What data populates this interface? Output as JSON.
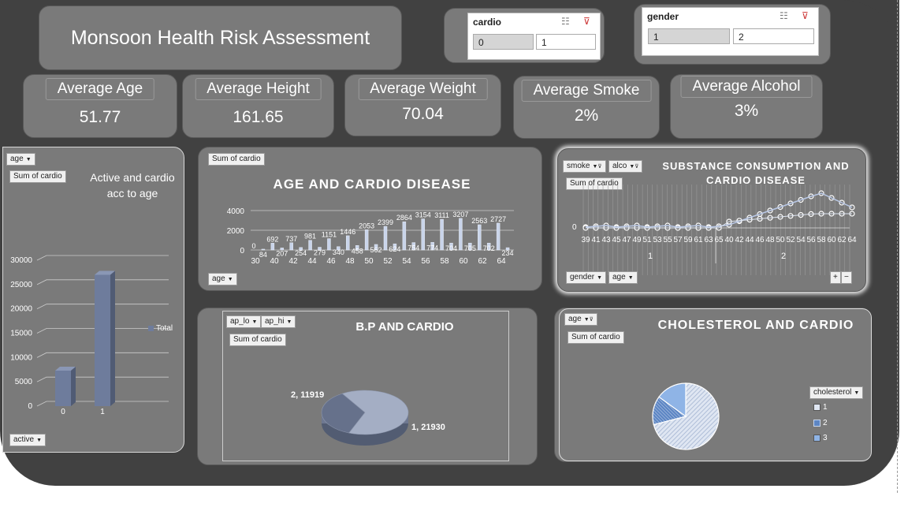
{
  "header": {
    "title": "Monsoon Health Risk Assessment"
  },
  "slicers": {
    "cardio": {
      "title": "cardio",
      "items": [
        "0",
        "1"
      ]
    },
    "gender": {
      "title": "gender",
      "items": [
        "1",
        "2"
      ]
    }
  },
  "kpis": [
    {
      "label": "Average Age",
      "value": "51.77"
    },
    {
      "label": "Average Height",
      "value": "161.65"
    },
    {
      "label": "Average Weight",
      "value": "70.04"
    },
    {
      "label": "Average Smoke",
      "value": "2%"
    },
    {
      "label": "Average Alcohol",
      "value": "3%"
    }
  ],
  "active_chart": {
    "filter_top": "age",
    "value_field": "Sum of cardio",
    "filter_bottom": "active",
    "title": "Active and cardio acc to age",
    "legend": "Total"
  },
  "age_chart": {
    "value_field": "Sum of cardio",
    "title": "AGE AND CARDIO DISEASE",
    "axis_field": "age"
  },
  "substance_chart": {
    "filters": [
      "smoke",
      "alco"
    ],
    "value_field": "Sum of cardio",
    "title": "SUBSTANCE CONSUMPTION AND CARDIO DISEASE",
    "bottom_fields": [
      "gender",
      "age"
    ],
    "group_labels": [
      "1",
      "2"
    ],
    "expand_buttons": [
      "+",
      "−"
    ]
  },
  "bp_chart": {
    "filters": [
      "ap_lo",
      "ap_hi"
    ],
    "value_field": "Sum of cardio",
    "title": "B.P AND CARDIO"
  },
  "chol_chart": {
    "filter": "age",
    "value_field": "Sum of cardio",
    "title": "CHOLESTEROL AND CARDIO",
    "legend_field": "cholesterol",
    "legend_items": [
      "1",
      "2",
      "3"
    ]
  },
  "chart_data": [
    {
      "type": "bar",
      "title": "Active and cardio acc to age",
      "categories": [
        "0",
        "1"
      ],
      "series": [
        {
          "name": "Total",
          "values": [
            7300,
            27000
          ]
        }
      ],
      "yticks": [
        "0",
        "5000",
        "10000",
        "15000",
        "20000",
        "25000",
        "30000"
      ],
      "ylim": [
        0,
        30000
      ],
      "legend": "right"
    },
    {
      "type": "bar",
      "title": "AGE AND CARDIO DISEASE",
      "x": [
        30,
        39,
        40,
        41,
        42,
        43,
        44,
        45,
        46,
        47,
        48,
        49,
        50,
        51,
        52,
        53,
        54,
        55,
        56,
        57,
        58,
        59,
        60,
        61,
        62,
        63,
        64,
        65
      ],
      "values": [
        0,
        84,
        692,
        207,
        737,
        254,
        981,
        279,
        1151,
        340,
        1446,
        458,
        2053,
        562,
        2399,
        624,
        2864,
        754,
        3154,
        774,
        3111,
        704,
        3207,
        705,
        2563,
        702,
        2727,
        234
      ],
      "yticks": [
        "0",
        "2000",
        "4000"
      ],
      "xticks": [
        "30",
        "40",
        "42",
        "44",
        "46",
        "48",
        "50",
        "52",
        "54",
        "56",
        "58",
        "60",
        "62",
        "64"
      ],
      "ylim": [
        0,
        4000
      ]
    },
    {
      "type": "line",
      "title": "SUBSTANCE CONSUMPTION AND CARDIO DISEASE",
      "xticks": [
        "39",
        "41",
        "43",
        "45",
        "47",
        "49",
        "51",
        "53",
        "55",
        "57",
        "59",
        "61",
        "63",
        "65",
        "40",
        "42",
        "44",
        "46",
        "48",
        "50",
        "52",
        "54",
        "56",
        "58",
        "60",
        "62",
        "64"
      ],
      "yticks": [
        "0"
      ]
    },
    {
      "type": "pie",
      "title": "B.P AND CARDIO",
      "labels": [
        "1",
        "2"
      ],
      "values": [
        21930,
        11919
      ],
      "data_labels": [
        "1, 21930",
        "2, 11919"
      ]
    },
    {
      "type": "pie",
      "title": "CHOLESTEROL AND CARDIO",
      "labels": [
        "1",
        "2",
        "3"
      ],
      "values": [
        71,
        14,
        15
      ]
    }
  ],
  "colors": {
    "board": "#414141",
    "panel": "#7a7a7a",
    "bar": "#6e7c9c",
    "pie_main": "#a4aec4",
    "pie_dark": "#5c6782"
  }
}
